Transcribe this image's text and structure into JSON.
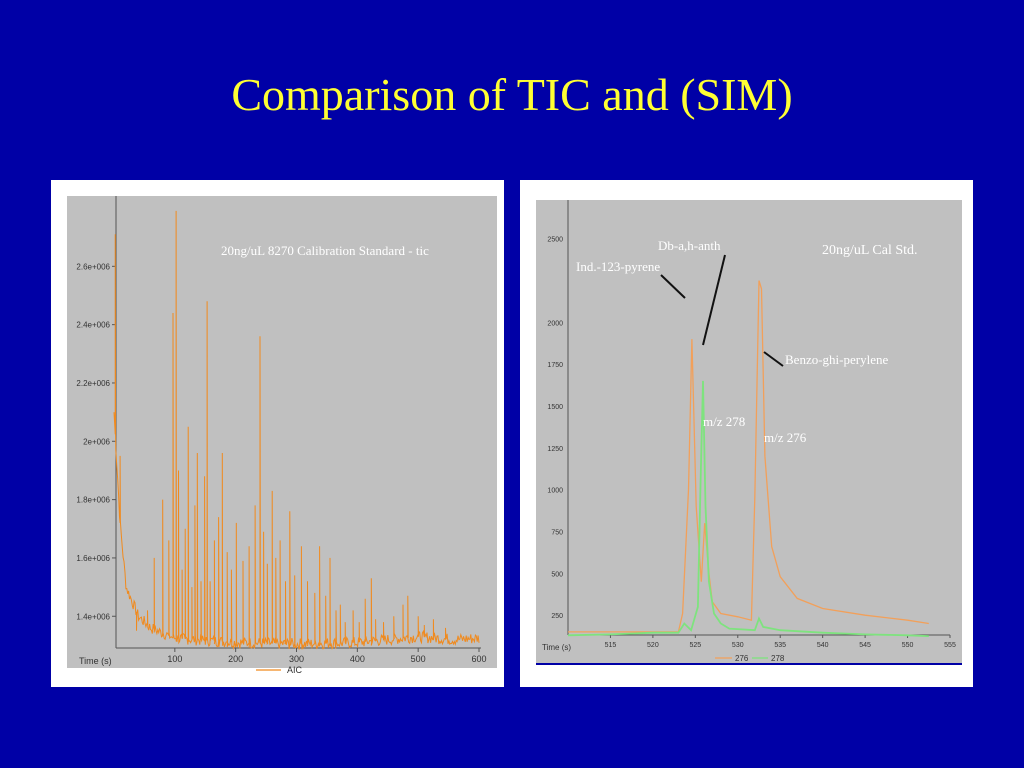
{
  "slide": {
    "title": "Comparison of TIC and (SIM)"
  },
  "colors": {
    "background": "#0000a6",
    "title": "#ffff33",
    "tic_trace": "#f08a1e",
    "sim_orange": "#f2a05a",
    "sim_green": "#7ee37e",
    "plot_bg": "#c0c0c0"
  },
  "chart_data": [
    {
      "type": "line",
      "title": "20ng/uL 8270 Calibration Standard - tic",
      "xlabel": "Time (s)",
      "xlim": [
        0,
        600
      ],
      "ylim": [
        1250000,
        2800000
      ],
      "x_ticks": [
        "100",
        "200",
        "300",
        "400",
        "500",
        "600"
      ],
      "y_ticks": [
        "1.4e+006",
        "1.6e+006",
        "1.8e+006",
        "2e+006",
        "2.2e+006",
        "2.4e+006",
        "2.6e+006"
      ],
      "legend": [
        "AIC"
      ],
      "series": [
        {
          "name": "AIC",
          "baseline": [
            [
              0,
              2100000
            ],
            [
              10,
              1720000
            ],
            [
              20,
              1500000
            ],
            [
              40,
              1400000
            ],
            [
              60,
              1360000
            ],
            [
              100,
              1325000
            ],
            [
              200,
              1310000
            ],
            [
              300,
              1305000
            ],
            [
              400,
              1310000
            ],
            [
              500,
              1330000
            ],
            [
              560,
              1320000
            ],
            [
              600,
              1325000
            ]
          ],
          "peaks": [
            [
              2,
              2710000
            ],
            [
              10,
              1950000
            ],
            [
              37,
              1350000
            ],
            [
              55,
              1420000
            ],
            [
              66,
              1600000
            ],
            [
              80,
              1800000
            ],
            [
              90,
              1660000
            ],
            [
              97,
              2440000
            ],
            [
              102,
              2790000
            ],
            [
              106,
              1900000
            ],
            [
              112,
              1560000
            ],
            [
              117,
              1700000
            ],
            [
              122,
              2050000
            ],
            [
              128,
              1500000
            ],
            [
              133,
              1780000
            ],
            [
              137,
              1960000
            ],
            [
              143,
              1520000
            ],
            [
              149,
              1880000
            ],
            [
              153,
              2480000
            ],
            [
              158,
              1520000
            ],
            [
              165,
              1660000
            ],
            [
              172,
              1740000
            ],
            [
              178,
              1960000
            ],
            [
              186,
              1620000
            ],
            [
              193,
              1560000
            ],
            [
              201,
              1720000
            ],
            [
              212,
              1590000
            ],
            [
              222,
              1640000
            ],
            [
              232,
              1780000
            ],
            [
              240,
              2360000
            ],
            [
              246,
              1690000
            ],
            [
              252,
              1580000
            ],
            [
              260,
              1830000
            ],
            [
              266,
              1600000
            ],
            [
              273,
              1660000
            ],
            [
              282,
              1520000
            ],
            [
              289,
              1760000
            ],
            [
              297,
              1540000
            ],
            [
              308,
              1640000
            ],
            [
              318,
              1520000
            ],
            [
              330,
              1480000
            ],
            [
              338,
              1640000
            ],
            [
              348,
              1470000
            ],
            [
              355,
              1600000
            ],
            [
              365,
              1420000
            ],
            [
              372,
              1440000
            ],
            [
              380,
              1380000
            ],
            [
              393,
              1420000
            ],
            [
              403,
              1380000
            ],
            [
              413,
              1460000
            ],
            [
              423,
              1530000
            ],
            [
              430,
              1390000
            ],
            [
              443,
              1380000
            ],
            [
              460,
              1400000
            ],
            [
              475,
              1440000
            ],
            [
              483,
              1470000
            ],
            [
              500,
              1400000
            ],
            [
              510,
              1370000
            ],
            [
              525,
              1390000
            ],
            [
              545,
              1360000
            ]
          ]
        }
      ]
    },
    {
      "type": "line",
      "title": "20ng/uL Cal Std.",
      "xlabel": "Time (s)",
      "xlim": [
        510,
        555
      ],
      "ylim": [
        0,
        2600
      ],
      "x_ticks": [
        "515",
        "520",
        "525",
        "530",
        "535",
        "540",
        "545",
        "550",
        "555"
      ],
      "y_ticks": [
        "2500",
        "2000",
        "1750",
        "1500",
        "1250",
        "1000",
        "750",
        "500",
        "250"
      ],
      "legend": [
        "276",
        "278"
      ],
      "series": [
        {
          "name": "276",
          "points": [
            [
              510,
              150
            ],
            [
              515,
              150
            ],
            [
              520,
              150
            ],
            [
              523,
              150
            ],
            [
              523.5,
              260
            ],
            [
              524.2,
              1000
            ],
            [
              524.6,
              1900
            ],
            [
              525.1,
              900
            ],
            [
              525.7,
              450
            ],
            [
              526.1,
              800
            ],
            [
              526.6,
              500
            ],
            [
              527,
              330
            ],
            [
              528,
              260
            ],
            [
              530,
              240
            ],
            [
              531.6,
              220
            ],
            [
              532,
              950
            ],
            [
              532.5,
              2250
            ],
            [
              532.8,
              2200
            ],
            [
              533.2,
              1200
            ],
            [
              534,
              660
            ],
            [
              535,
              480
            ],
            [
              537,
              350
            ],
            [
              540,
              290
            ],
            [
              545,
              250
            ],
            [
              550,
              220
            ],
            [
              552.5,
              200
            ]
          ]
        },
        {
          "name": "278",
          "points": [
            [
              510,
              130
            ],
            [
              515,
              135
            ],
            [
              520,
              145
            ],
            [
              523,
              145
            ],
            [
              523.7,
              200
            ],
            [
              524.1,
              180
            ],
            [
              524.5,
              160
            ],
            [
              525.3,
              300
            ],
            [
              525.6,
              1000
            ],
            [
              525.9,
              1650
            ],
            [
              526.2,
              900
            ],
            [
              526.6,
              450
            ],
            [
              527.2,
              260
            ],
            [
              528,
              200
            ],
            [
              529,
              170
            ],
            [
              532,
              160
            ],
            [
              532.5,
              230
            ],
            [
              533,
              180
            ],
            [
              535,
              160
            ],
            [
              540,
              145
            ],
            [
              545,
              135
            ],
            [
              550,
              130
            ],
            [
              552.5,
              125
            ]
          ]
        }
      ],
      "annotations": [
        "Ind.-123-pyrene",
        "Db-a,h-anth",
        "Benzo-ghi-perylene",
        "m/z 278",
        "m/z 276"
      ]
    }
  ]
}
